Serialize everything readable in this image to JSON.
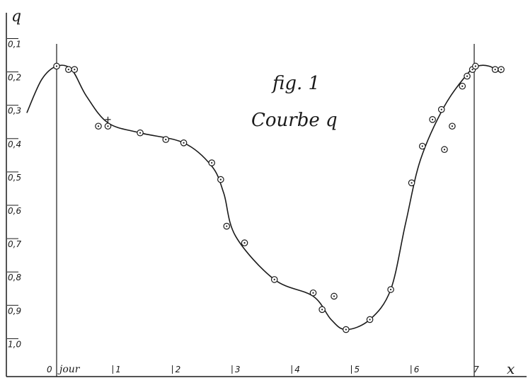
{
  "chart_data": {
    "type": "scatter",
    "title": "fig. 1",
    "subtitle": "Courbe q",
    "ylabel": "q",
    "xlabel": "x",
    "x_unit_label": "jour",
    "x_ticks": [
      "0",
      "1",
      "2",
      "3",
      "4",
      "5",
      "6",
      "7"
    ],
    "y_ticks": [
      "0,1",
      "0,2",
      "0,3",
      "0,4",
      "0,5",
      "0,6",
      "0,7",
      "0,8",
      "0,9",
      "1,0"
    ],
    "y_inverted": true,
    "xlim": [
      -0.55,
      8.0
    ],
    "ylim": [
      0.05,
      1.05
    ],
    "grid": false,
    "colors": {
      "ink": "#1a1a1a",
      "paper": "#ffffff"
    },
    "points": [
      {
        "x": 0.0,
        "y": 0.17
      },
      {
        "x": 0.2,
        "y": 0.18
      },
      {
        "x": 0.3,
        "y": 0.18
      },
      {
        "x": 0.7,
        "y": 0.35
      },
      {
        "x": 0.86,
        "y": 0.35
      },
      {
        "x": 1.4,
        "y": 0.37
      },
      {
        "x": 1.83,
        "y": 0.39
      },
      {
        "x": 2.13,
        "y": 0.4
      },
      {
        "x": 2.6,
        "y": 0.46
      },
      {
        "x": 2.75,
        "y": 0.51
      },
      {
        "x": 2.85,
        "y": 0.65
      },
      {
        "x": 3.15,
        "y": 0.7
      },
      {
        "x": 3.65,
        "y": 0.81
      },
      {
        "x": 4.3,
        "y": 0.85
      },
      {
        "x": 4.45,
        "y": 0.9
      },
      {
        "x": 4.65,
        "y": 0.86
      },
      {
        "x": 4.85,
        "y": 0.96
      },
      {
        "x": 5.25,
        "y": 0.93
      },
      {
        "x": 5.6,
        "y": 0.84
      },
      {
        "x": 5.95,
        "y": 0.52
      },
      {
        "x": 6.13,
        "y": 0.41
      },
      {
        "x": 6.3,
        "y": 0.33
      },
      {
        "x": 6.45,
        "y": 0.3
      },
      {
        "x": 6.5,
        "y": 0.42
      },
      {
        "x": 6.63,
        "y": 0.35
      },
      {
        "x": 6.8,
        "y": 0.23
      },
      {
        "x": 6.88,
        "y": 0.2
      },
      {
        "x": 6.97,
        "y": 0.18
      },
      {
        "x": 7.02,
        "y": 0.17
      },
      {
        "x": 7.35,
        "y": 0.18
      },
      {
        "x": 7.45,
        "y": 0.18
      }
    ],
    "curve": [
      {
        "x": -0.5,
        "y": 0.31
      },
      {
        "x": -0.25,
        "y": 0.21
      },
      {
        "x": 0.0,
        "y": 0.17
      },
      {
        "x": 0.25,
        "y": 0.18
      },
      {
        "x": 0.5,
        "y": 0.26
      },
      {
        "x": 0.86,
        "y": 0.34
      },
      {
        "x": 1.4,
        "y": 0.37
      },
      {
        "x": 2.13,
        "y": 0.4
      },
      {
        "x": 2.6,
        "y": 0.47
      },
      {
        "x": 2.8,
        "y": 0.55
      },
      {
        "x": 3.0,
        "y": 0.68
      },
      {
        "x": 3.65,
        "y": 0.81
      },
      {
        "x": 4.3,
        "y": 0.86
      },
      {
        "x": 4.6,
        "y": 0.93
      },
      {
        "x": 4.85,
        "y": 0.96
      },
      {
        "x": 5.25,
        "y": 0.93
      },
      {
        "x": 5.6,
        "y": 0.84
      },
      {
        "x": 5.85,
        "y": 0.64
      },
      {
        "x": 6.1,
        "y": 0.45
      },
      {
        "x": 6.5,
        "y": 0.29
      },
      {
        "x": 6.9,
        "y": 0.19
      },
      {
        "x": 7.05,
        "y": 0.17
      },
      {
        "x": 7.25,
        "y": 0.17
      },
      {
        "x": 7.45,
        "y": 0.19
      }
    ],
    "cross_marker": {
      "x": 0.86,
      "y": 0.33
    }
  }
}
